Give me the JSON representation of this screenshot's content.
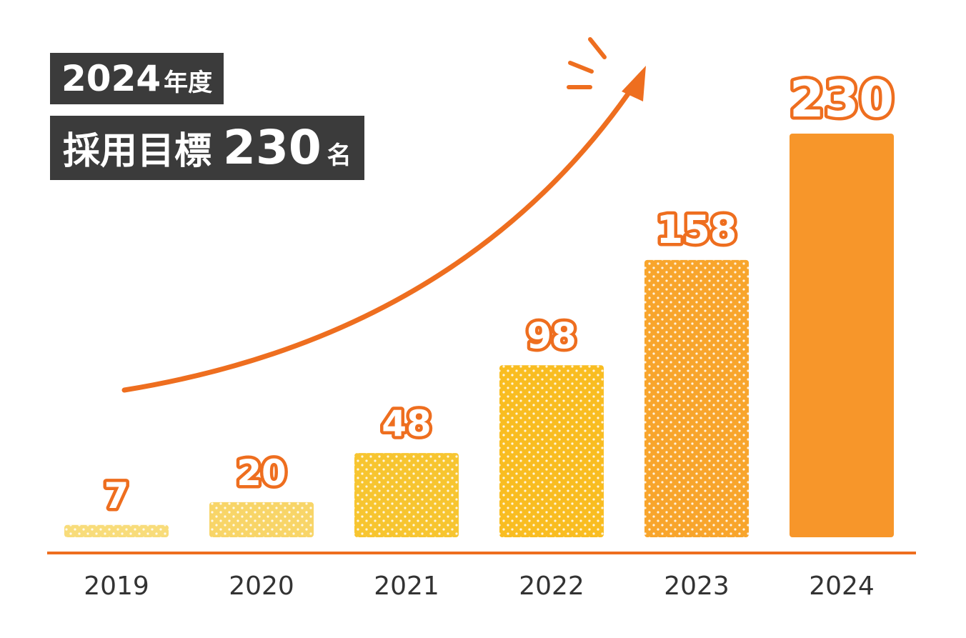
{
  "header": {
    "year_label": "2024",
    "year_suffix": "年度",
    "goal_label": "採用目標",
    "goal_value": "230",
    "goal_unit": "名"
  },
  "colors": {
    "accent": "#ee6e1f",
    "bar_final": "#f7962a",
    "badge_bg": "#3b3b3b"
  },
  "chart_data": {
    "type": "bar",
    "title": "採用目標 230名",
    "categories": [
      "2019",
      "2020",
      "2021",
      "2022",
      "2023",
      "2024"
    ],
    "values": [
      7,
      20,
      48,
      98,
      158,
      230
    ],
    "bar_colors": [
      "#f8dc7a",
      "#f8d568",
      "#f7c530",
      "#f9bd21",
      "#f8a52c",
      "#f7962a"
    ],
    "patterned": [
      true,
      true,
      true,
      true,
      true,
      false
    ],
    "ylim": [
      0,
      230
    ],
    "xlabel": "",
    "ylabel": "",
    "grid": false,
    "annotation": "upward trend arrow"
  }
}
